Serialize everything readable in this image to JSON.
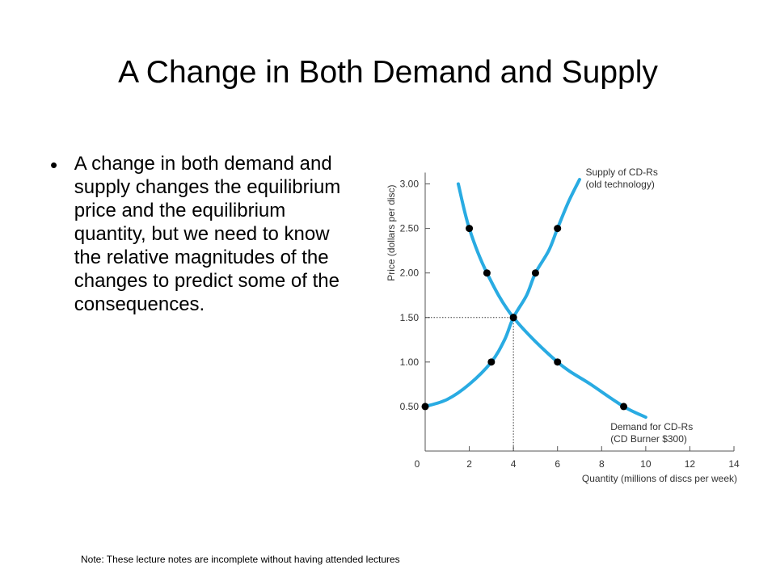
{
  "slide": {
    "title": "A Change in Both Demand and Supply",
    "bullet_marker": "•",
    "bullet_text": "A change in both demand and supply changes the equilibrium price and the equilibrium quantity, but we need to know the relative magnitudes of the changes to predict some of the consequences.",
    "footnote": "Note: These lecture notes are incomplete without having attended lectures"
  },
  "chart_data": {
    "type": "line",
    "xlabel": "Quantity (millions of discs per week)",
    "ylabel": "Price (dollars per disc)",
    "xlim": [
      0,
      14
    ],
    "ylim": [
      0,
      3.0
    ],
    "x_ticks": [
      0,
      2,
      4,
      6,
      8,
      10,
      12,
      14
    ],
    "x_tick_labels": [
      "0",
      "2",
      "4",
      "6",
      "8",
      "10",
      "12",
      "14"
    ],
    "y_ticks": [
      0.5,
      1.0,
      1.5,
      2.0,
      2.5,
      3.0
    ],
    "y_tick_labels": [
      "0.50",
      "1.00",
      "1.50",
      "2.00",
      "2.50",
      "3.00"
    ],
    "grid": false,
    "equilibrium": {
      "x": 4,
      "y": 1.5
    },
    "series": [
      {
        "name": "Supply of CD-Rs (old technology)",
        "label_lines": [
          "Supply of CD-Rs",
          "(old technology)"
        ],
        "color": "#29abe2",
        "curve": [
          [
            0,
            0.5
          ],
          [
            1,
            0.58
          ],
          [
            2,
            0.75
          ],
          [
            3,
            1.0
          ],
          [
            3.6,
            1.25
          ],
          [
            4,
            1.5
          ],
          [
            4.6,
            1.75
          ],
          [
            5,
            2.0
          ],
          [
            5.6,
            2.25
          ],
          [
            6,
            2.5
          ],
          [
            6.5,
            2.8
          ],
          [
            7,
            3.05
          ]
        ],
        "points": [
          [
            0,
            0.5
          ],
          [
            3,
            1.0
          ],
          [
            4,
            1.5
          ],
          [
            5,
            2.0
          ],
          [
            6,
            2.5
          ]
        ]
      },
      {
        "name": "Demand for CD-Rs (CD Burner $300)",
        "label_lines": [
          "Demand for CD-Rs",
          "(CD Burner $300)"
        ],
        "color": "#29abe2",
        "curve": [
          [
            1.5,
            3.0
          ],
          [
            2,
            2.5
          ],
          [
            2.8,
            2.0
          ],
          [
            4,
            1.5
          ],
          [
            6,
            1.0
          ],
          [
            7.5,
            0.75
          ],
          [
            9,
            0.5
          ],
          [
            10,
            0.38
          ]
        ],
        "points": [
          [
            2,
            2.5
          ],
          [
            2.8,
            2.0
          ],
          [
            4,
            1.5
          ],
          [
            6,
            1.0
          ],
          [
            9,
            0.5
          ]
        ]
      }
    ]
  }
}
